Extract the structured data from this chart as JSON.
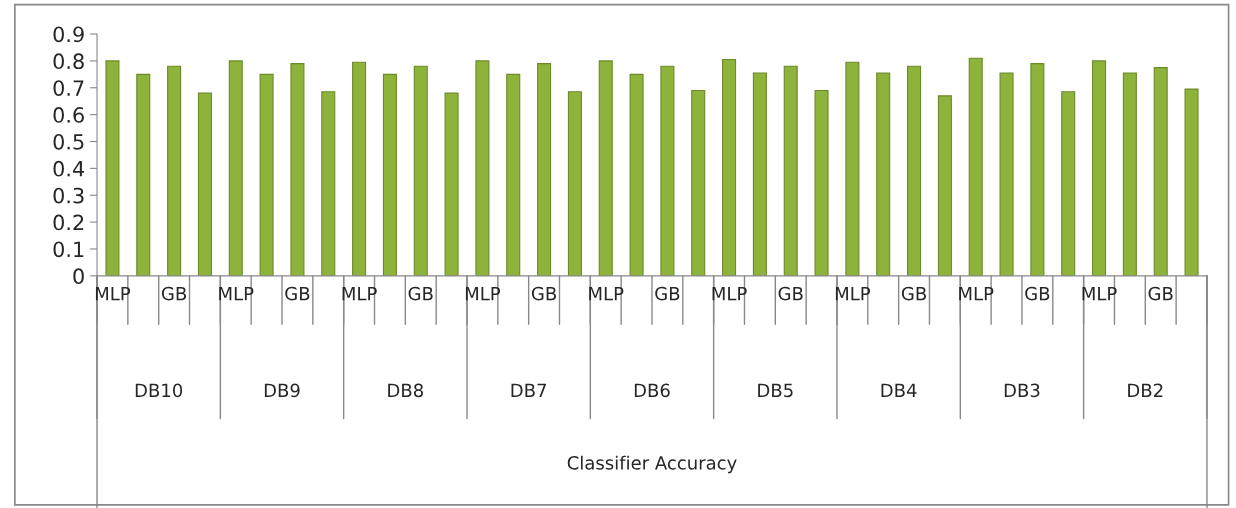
{
  "chart_data": {
    "type": "bar",
    "categories": [
      "MLP",
      null,
      "GB",
      null,
      "MLP",
      null,
      "GB",
      null,
      "MLP",
      null,
      "GB",
      null,
      "MLP",
      null,
      "GB",
      null,
      "MLP",
      null,
      "GB",
      null,
      "MLP",
      null,
      "GB",
      null,
      "MLP",
      null,
      "GB",
      null,
      "MLP",
      null,
      "GB",
      null,
      "MLP",
      null,
      "GB",
      null
    ],
    "values": [
      0.8,
      0.75,
      0.78,
      0.68,
      0.8,
      0.75,
      0.79,
      0.685,
      0.795,
      0.75,
      0.78,
      0.68,
      0.8,
      0.75,
      0.79,
      0.685,
      0.8,
      0.75,
      0.78,
      0.69,
      0.805,
      0.755,
      0.78,
      0.69,
      0.795,
      0.755,
      0.78,
      0.67,
      0.81,
      0.755,
      0.79,
      0.685,
      0.8,
      0.755,
      0.775,
      0.695
    ],
    "color": "#8db33a",
    "annotations": [
      "DB10",
      "DB9",
      "DB8",
      "DB7",
      "DB6",
      "DB5",
      "DB4",
      "DB3",
      "DB2",
      "Classifier Accuracy"
    ],
    "ylim": [
      0,
      0.9
    ],
    "yticks": [
      {
        "value": 0,
        "label": "0"
      },
      0.1,
      0.2,
      0.3,
      0.4,
      0.5,
      0.6,
      0.7,
      0.8,
      0.9
    ],
    "grid": false,
    "legend": false
  }
}
